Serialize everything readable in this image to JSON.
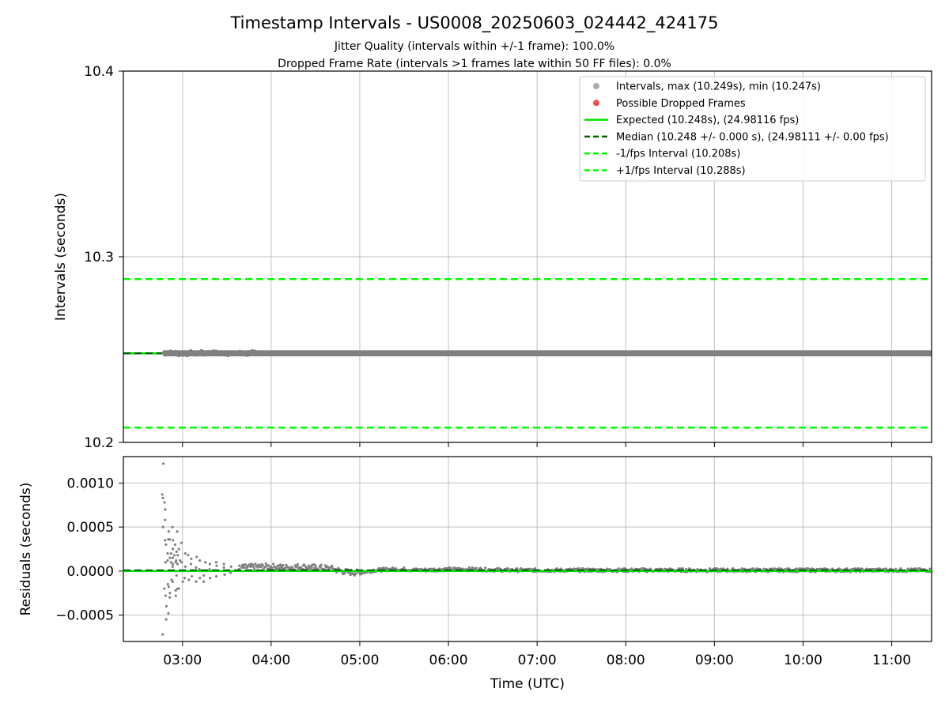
{
  "header": {
    "title": "Timestamp Intervals - US0008_20250603_024442_424175",
    "subtitle_jitter": "Jitter Quality (intervals within +/-1 frame): 100.0%",
    "subtitle_dropped": "Dropped Frame Rate (intervals >1 frames late within 50 FF files): 0.0%"
  },
  "colors": {
    "interval_points": "#808080",
    "dropped_points": "#f05050",
    "expected_line": "#00e000",
    "median_line": "#006400",
    "fps_bounds": "#00ff00",
    "grid": "#b0b0b0"
  },
  "chart_data": [
    {
      "type": "scatter",
      "panel": "top",
      "ylabel": "Intervals (seconds)",
      "xlabel": "",
      "ylim": [
        10.2,
        10.4
      ],
      "xlim": [
        "02:20",
        "11:27"
      ],
      "yticks": [
        "10.2",
        "10.3",
        "10.4"
      ],
      "grid": true,
      "legend_position": "top-right",
      "legend": [
        "Intervals, max (10.249s), min (10.247s)",
        "Possible Dropped Frames",
        "Expected (10.248s), (24.98116 fps)",
        "Median (10.248 +/- 0.000 s), (24.98111 +/- 0.00 fps)",
        "-1/fps Interval (10.208s)",
        "+1/fps Interval (10.288s)"
      ],
      "series": [
        {
          "name": "Intervals, max (10.249s), min (10.247s)",
          "x_range": [
            "02:47",
            "11:27"
          ],
          "y_min": 10.247,
          "y_max": 10.249
        },
        {
          "name": "Possible Dropped Frames",
          "values": []
        }
      ],
      "reference_lines": {
        "expected": 10.248,
        "median": 10.248,
        "minus_1_fps": 10.208,
        "plus_1_fps": 10.288
      }
    },
    {
      "type": "scatter",
      "panel": "bottom",
      "ylabel": "Residuals (seconds)",
      "xlabel": "Time (UTC)",
      "ylim": [
        -0.0008,
        0.0013
      ],
      "xlim": [
        "02:20",
        "11:27"
      ],
      "yticks": [
        "−0.0005",
        "0.0000",
        "0.0005",
        "0.0010"
      ],
      "xticks": [
        "03:00",
        "04:00",
        "05:00",
        "06:00",
        "07:00",
        "08:00",
        "09:00",
        "10:00",
        "11:00"
      ],
      "grid": true,
      "reference_lines": {
        "zero": 0.0,
        "median_residual": 1e-05
      },
      "series": [
        {
          "name": "Residuals",
          "points": [
            [
              "02:47",
              0.00122
            ],
            [
              "02:47",
              0.00087
            ],
            [
              "02:47",
              0.00083
            ],
            [
              "02:47",
              0.0005
            ],
            [
              "02:47",
              -0.00072
            ],
            [
              "02:48",
              0.00078
            ],
            [
              "02:48",
              0.00058
            ],
            [
              "02:48",
              0.00035
            ],
            [
              "02:48",
              -0.0002
            ],
            [
              "02:48",
              -0.00028
            ],
            [
              "02:49",
              0.0007
            ],
            [
              "02:49",
              0.0003
            ],
            [
              "02:49",
              -0.0004
            ],
            [
              "02:49",
              -0.00055
            ],
            [
              "02:49",
              0.0001
            ],
            [
              "02:50",
              0.00045
            ],
            [
              "02:50",
              0.0002
            ],
            [
              "02:50",
              -0.00048
            ],
            [
              "02:50",
              -0.00015
            ],
            [
              "02:50",
              0.00012
            ],
            [
              "02:51",
              0.00036
            ],
            [
              "02:51",
              -0.0003
            ],
            [
              "02:51",
              0.00015
            ],
            [
              "02:51",
              -0.00018
            ],
            [
              "02:52",
              0.00036
            ],
            [
              "02:52",
              -0.00025
            ],
            [
              "02:52",
              0.0001
            ],
            [
              "02:52",
              0.0002
            ],
            [
              "02:53",
              0.0005
            ],
            [
              "02:53",
              0.00025
            ],
            [
              "02:53",
              -0.0001
            ],
            [
              "02:53",
              8e-05
            ],
            [
              "02:54",
              0.00035
            ],
            [
              "02:54",
              -0.00012
            ],
            [
              "02:54",
              0.00015
            ],
            [
              "02:54",
              5e-05
            ],
            [
              "02:55",
              0.0003
            ],
            [
              "02:55",
              -0.00028
            ],
            [
              "02:55",
              0.0001
            ],
            [
              "02:55",
              0.00018
            ],
            [
              "02:56",
              0.00022
            ],
            [
              "02:56",
              -0.00022
            ],
            [
              "02:56",
              0.00012
            ],
            [
              "02:56",
              -5e-05
            ],
            [
              "02:57",
              0.00045
            ],
            [
              "02:57",
              0.00018
            ],
            [
              "02:57",
              -0.0002
            ],
            [
              "02:57",
              8e-05
            ],
            [
              "02:58",
              0.00012
            ],
            [
              "02:58",
              -0.0002
            ],
            [
              "02:58",
              0.00025
            ],
            [
              "03:00",
              0.00032
            ],
            [
              "03:00",
              -0.00012
            ],
            [
              "03:00",
              0.0001
            ],
            [
              "03:02",
              0.0002
            ],
            [
              "03:02",
              -8e-05
            ],
            [
              "03:02",
              5e-05
            ],
            [
              "03:04",
              0.00018
            ],
            [
              "03:04",
              0.0
            ],
            [
              "03:04",
              -0.0001
            ],
            [
              "03:06",
              0.00014
            ],
            [
              "03:06",
              -6e-05
            ],
            [
              "03:06",
              8e-05
            ],
            [
              "03:09",
              0.00016
            ],
            [
              "03:09",
              -0.00012
            ],
            [
              "03:09",
              4e-05
            ],
            [
              "03:12",
              0.00012
            ],
            [
              "03:12",
              -8e-05
            ],
            [
              "03:12",
              2e-05
            ],
            [
              "03:15",
              0.0001
            ],
            [
              "03:15",
              -5e-05
            ],
            [
              "03:15",
              -0.00012
            ],
            [
              "03:19",
              8e-05
            ],
            [
              "03:19",
              -8e-05
            ],
            [
              "03:19",
              2e-05
            ],
            [
              "03:23",
              6e-05
            ],
            [
              "03:23",
              -6e-05
            ],
            [
              "03:23",
              0.0001
            ],
            [
              "03:28",
              4e-05
            ],
            [
              "03:28",
              -4e-05
            ],
            [
              "03:28",
              8e-05
            ],
            [
              "03:33",
              5e-05
            ],
            [
              "03:33",
              -2e-05
            ],
            [
              "03:38",
              6e-05
            ],
            [
              "03:38",
              2e-05
            ]
          ],
          "band_segments": [
            [
              "03:40",
              4e-05
            ],
            [
              "03:50",
              5e-05
            ],
            [
              "04:00",
              5e-05
            ],
            [
              "04:10",
              4e-05
            ],
            [
              "04:20",
              5e-05
            ],
            [
              "04:30",
              4e-05
            ],
            [
              "04:40",
              3e-05
            ],
            [
              "04:50",
              -1e-05
            ],
            [
              "05:00",
              -2e-05
            ],
            [
              "05:10",
              1e-05
            ],
            [
              "05:20",
              2e-05
            ],
            [
              "05:30",
              2e-05
            ],
            [
              "05:40",
              1e-05
            ],
            [
              "06:00",
              2e-05
            ],
            [
              "06:20",
              2e-05
            ],
            [
              "06:40",
              1e-05
            ],
            [
              "07:00",
              1e-05
            ],
            [
              "07:20",
              1e-05
            ],
            [
              "07:40",
              1e-05
            ],
            [
              "08:00",
              1e-05
            ],
            [
              "08:30",
              1e-05
            ],
            [
              "09:00",
              1e-05
            ],
            [
              "09:30",
              1e-05
            ],
            [
              "10:00",
              1e-05
            ],
            [
              "10:30",
              1e-05
            ],
            [
              "11:00",
              1e-05
            ],
            [
              "11:27",
              1e-05
            ]
          ]
        }
      ]
    }
  ]
}
